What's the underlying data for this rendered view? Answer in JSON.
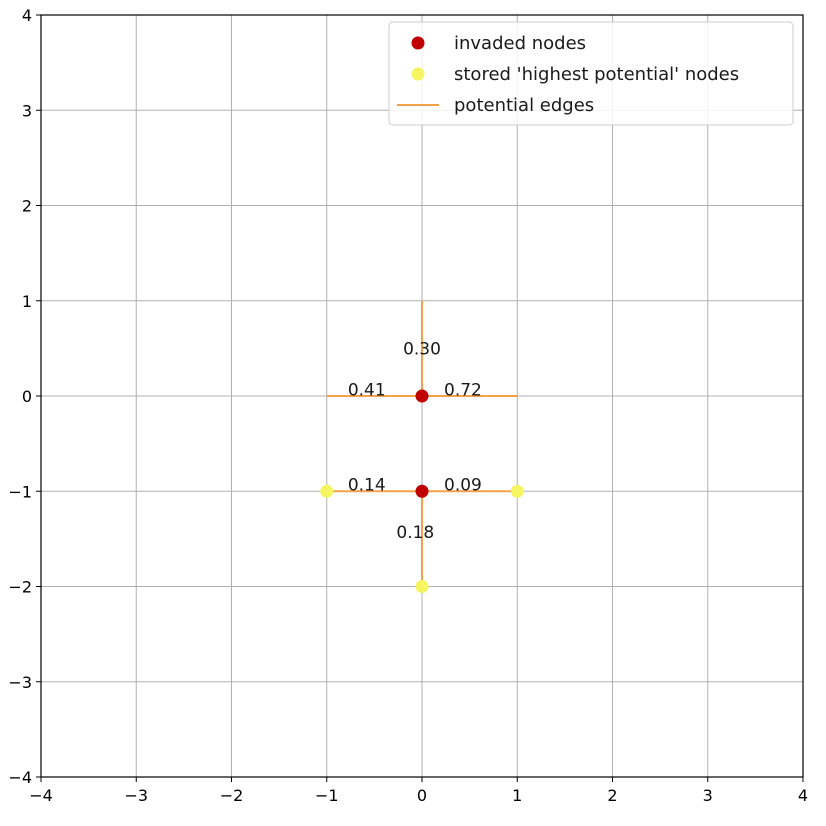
{
  "chart_data": {
    "type": "scatter",
    "xlim": [
      -4,
      4
    ],
    "ylim": [
      -4,
      4
    ],
    "xticks": [
      -4,
      -3,
      -2,
      -1,
      0,
      1,
      2,
      3,
      4
    ],
    "yticks": [
      -4,
      -3,
      -2,
      -1,
      0,
      1,
      2,
      3,
      4
    ],
    "xtick_labels": [
      "−4",
      "−3",
      "−2",
      "−1",
      "0",
      "1",
      "2",
      "3",
      "4"
    ],
    "ytick_labels": [
      "−4",
      "−3",
      "−2",
      "−1",
      "0",
      "1",
      "2",
      "3",
      "4"
    ],
    "grid": true,
    "legend_position": "top-right",
    "series": [
      {
        "name": "invaded nodes",
        "kind": "points",
        "color": "#c00000",
        "points": [
          [
            0,
            0
          ],
          [
            0,
            -1
          ]
        ]
      },
      {
        "name": "stored 'highest potential' nodes",
        "kind": "points",
        "color": "#f5f562",
        "points": [
          [
            -1,
            -1
          ],
          [
            1,
            -1
          ],
          [
            0,
            -2
          ]
        ]
      },
      {
        "name": "potential edges",
        "kind": "edges",
        "color": "#f5a04a",
        "edges": [
          {
            "from": [
              0,
              0
            ],
            "to": [
              0,
              1
            ],
            "label": "0.30",
            "label_at": [
              0,
              0.5
            ]
          },
          {
            "from": [
              0,
              0
            ],
            "to": [
              -1,
              0
            ],
            "label": "0.41",
            "label_at": [
              -0.58,
              0.07
            ]
          },
          {
            "from": [
              0,
              0
            ],
            "to": [
              1,
              0
            ],
            "label": "0.72",
            "label_at": [
              0.43,
              0.07
            ]
          },
          {
            "from": [
              0,
              -1
            ],
            "to": [
              -1,
              -1
            ],
            "label": "0.14",
            "label_at": [
              -0.58,
              -0.93
            ]
          },
          {
            "from": [
              0,
              -1
            ],
            "to": [
              1,
              -1
            ],
            "label": "0.09",
            "label_at": [
              0.43,
              -0.93
            ]
          },
          {
            "from": [
              0,
              -1
            ],
            "to": [
              0,
              -2
            ],
            "label": "0.18",
            "label_at": [
              -0.07,
              -1.43
            ]
          }
        ]
      }
    ]
  }
}
